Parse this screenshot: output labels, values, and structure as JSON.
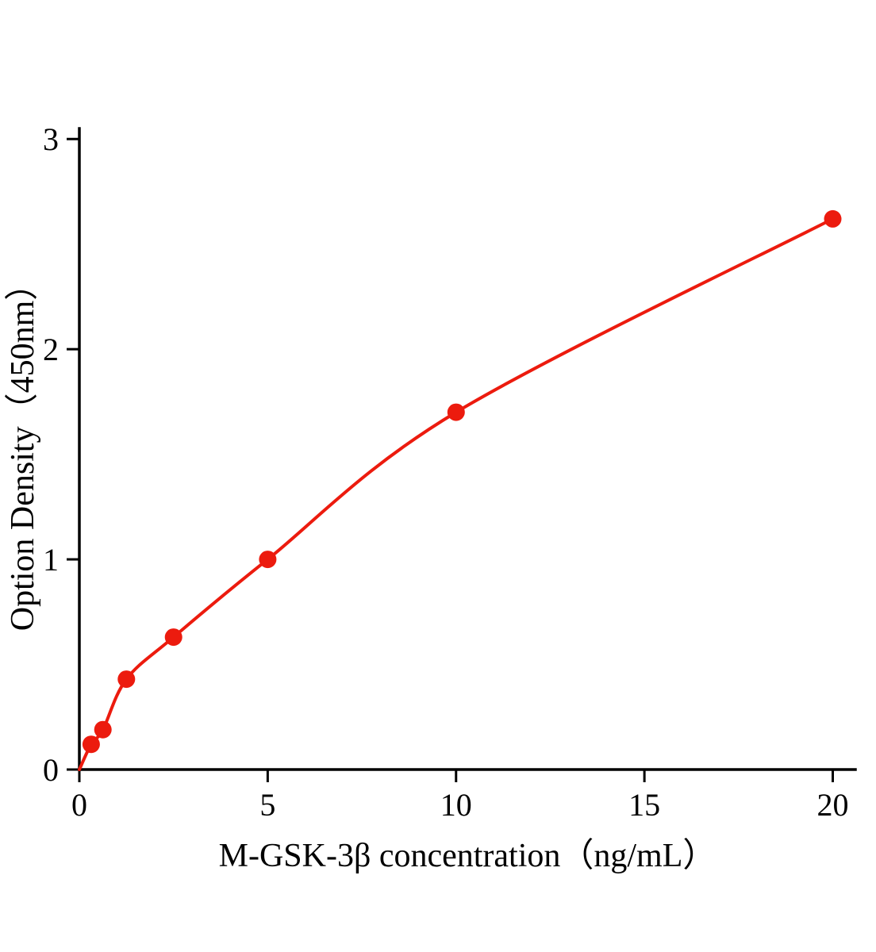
{
  "chart_data": {
    "type": "scatter",
    "title": "",
    "xlabel": "M-GSK-3β concentration（ng/mL）",
    "ylabel": "Option Density（450nm）",
    "x": [
      0.313,
      0.625,
      1.25,
      2.5,
      5,
      10,
      20
    ],
    "y": [
      0.12,
      0.19,
      0.43,
      0.63,
      1.0,
      1.7,
      2.62
    ],
    "curve_through_origin": true,
    "xticks": [
      0,
      5,
      10,
      15,
      20
    ],
    "yticks": [
      0,
      1,
      2,
      3
    ],
    "xtick_labels": [
      "0",
      "5",
      "10",
      "15",
      "20"
    ],
    "ytick_labels": [
      "0",
      "1",
      "2",
      "3"
    ],
    "xlim": [
      0,
      20.6
    ],
    "ylim": [
      0,
      3.05
    ],
    "grid": false,
    "legend": "none",
    "marker_color": "#ec1b0e",
    "line_color": "#ec1b0e",
    "axis_color": "#000000"
  }
}
